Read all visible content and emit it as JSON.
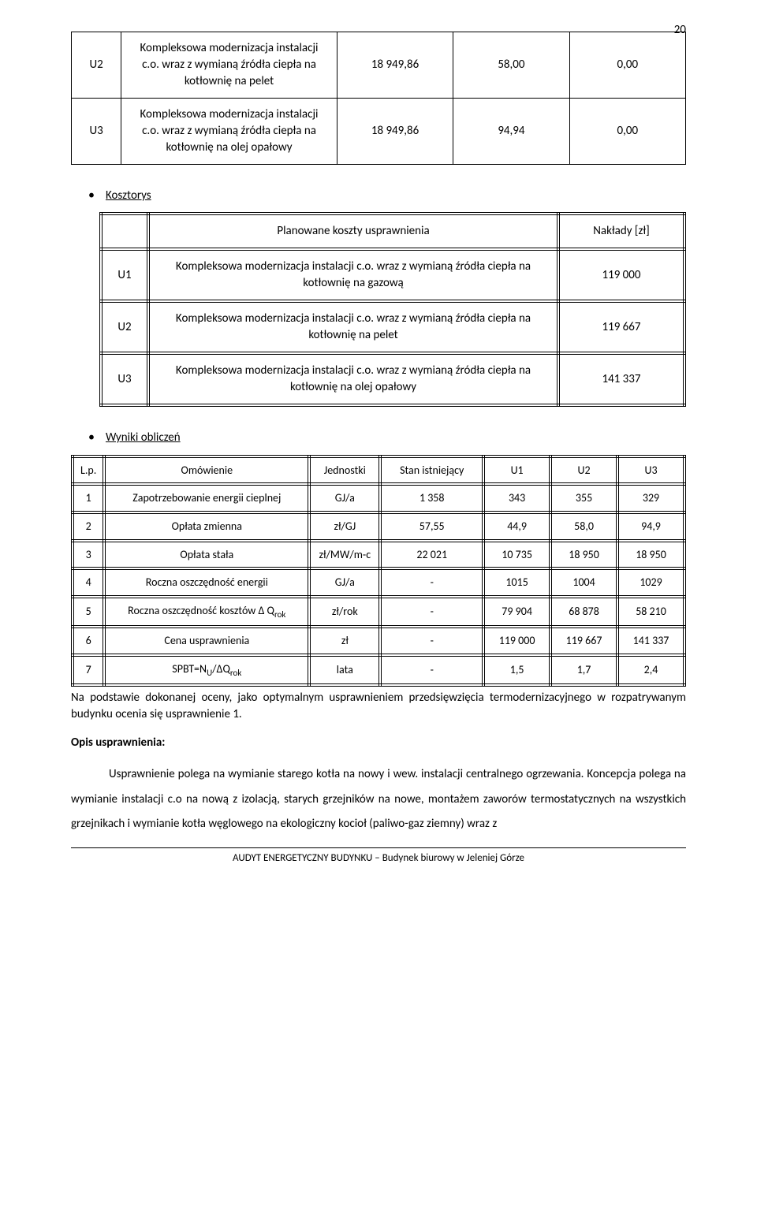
{
  "page_number": "20",
  "top_table": {
    "rows": [
      {
        "code": "U2",
        "desc": "Kompleksowa modernizacja instalacji c.o. wraz z wymianą źródła ciepła na kotłownię na pelet",
        "v1": "18 949,86",
        "v2": "58,00",
        "v3": "0,00"
      },
      {
        "code": "U3",
        "desc": "Kompleksowa modernizacja instalacji c.o. wraz z wymianą źródła ciepła na kotłownię na olej opałowy",
        "v1": "18 949,86",
        "v2": "94,94",
        "v3": "0,00"
      }
    ]
  },
  "kosztorys": {
    "heading": "Kosztorys",
    "header_left": "Planowane koszty usprawnienia",
    "header_right": "Nakłady [zł]",
    "rows": [
      {
        "code": "U1",
        "desc": "Kompleksowa modernizacja instalacji c.o. wraz z wymianą źródła ciepła na kotłownię na gazową",
        "val": "119 000"
      },
      {
        "code": "U2",
        "desc": "Kompleksowa modernizacja instalacji c.o. wraz z wymianą źródła ciepła na kotłownię na pelet",
        "val": "119 667"
      },
      {
        "code": "U3",
        "desc": "Kompleksowa modernizacja instalacji c.o. wraz z wymianą źródła ciepła na kotłownię na olej opałowy",
        "val": "141 337"
      }
    ]
  },
  "wyniki": {
    "heading": "Wyniki obliczeń",
    "columns": {
      "lp": "L.p.",
      "om": "Omówienie",
      "jd": "Jednostki",
      "stan": "Stan istniejący",
      "u1": "U1",
      "u2": "U2",
      "u3": "U3"
    },
    "rows": [
      {
        "lp": "1",
        "om": "Zapotrzebowanie energii cieplnej",
        "jd": "GJ/a",
        "stan": "1 358",
        "u1": "343",
        "u2": "355",
        "u3": "329"
      },
      {
        "lp": "2",
        "om": "Opłata zmienna",
        "jd": "zł/GJ",
        "stan": "57,55",
        "u1": "44,9",
        "u2": "58,0",
        "u3": "94,9"
      },
      {
        "lp": "3",
        "om": "Opłata stała",
        "jd": "zł/MW/m-c",
        "stan": "22 021",
        "u1": "10 735",
        "u2": "18 950",
        "u3": "18 950"
      },
      {
        "lp": "4",
        "om": "Roczna oszczędność energii",
        "jd": "GJ/a",
        "stan": "-",
        "u1": "1015",
        "u2": "1004",
        "u3": "1029"
      },
      {
        "lp": "5",
        "om_html": "Roczna oszczędność kosztów Δ Q<sub>rok</sub>",
        "jd": "zł/rok",
        "stan": "-",
        "u1": "79 904",
        "u2": "68 878",
        "u3": "58 210"
      },
      {
        "lp": "6",
        "om": "Cena usprawnienia",
        "jd": "zł",
        "stan": "-",
        "u1": "119 000",
        "u2": "119 667",
        "u3": "141 337"
      },
      {
        "lp": "7",
        "om_html": "SPBT=N<sub>U</sub>/ΔQ<sub>rok</sub>",
        "jd": "lata",
        "stan": "-",
        "u1": "1,5",
        "u2": "1,7",
        "u3": "2,4"
      }
    ]
  },
  "para_below_table": "Na podstawie dokonanej oceny, jako optymalnym usprawnieniem przedsięwzięcia termodernizacyjnego w rozpatrywanym budynku ocenia się usprawnienie 1.",
  "opis_heading": "Opis usprawnienia:",
  "opis_body": "Usprawnienie polega na wymianie starego kotła na nowy i wew. instalacji centralnego ogrzewania. Koncepcja polega na wymianie instalacji c.o na nową z izolacją, starych grzejników na nowe, montażem zaworów termostatycznych na wszystkich grzejnikach i wymianie kotła węglowego na ekologiczny kocioł (paliwo-gaz ziemny) wraz z",
  "footer": "AUDYT ENERGETYCZNY BUDYNKU – Budynek biurowy w Jeleniej Górze"
}
